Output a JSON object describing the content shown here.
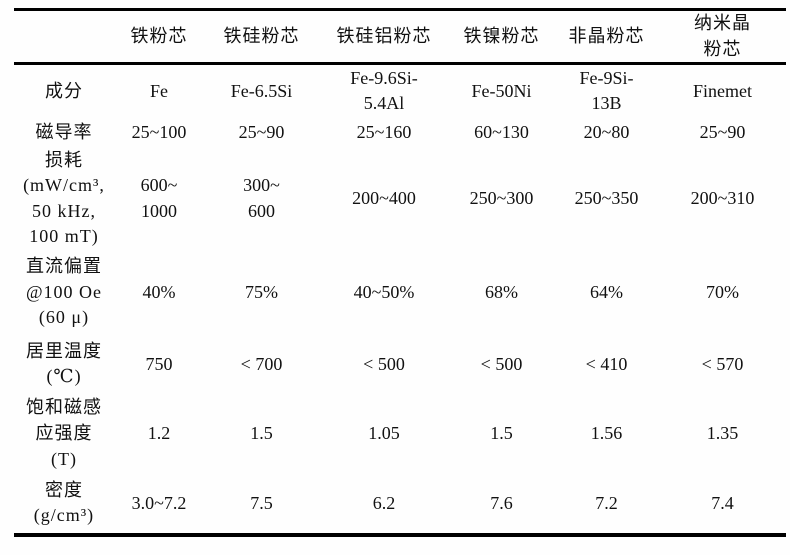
{
  "colors": {
    "background": "#fefefe",
    "text": "#111111",
    "rule": "#000000"
  },
  "table": {
    "columns": [
      "",
      "铁粉芯",
      "铁硅粉芯",
      "铁硅铝粉芯",
      "铁镍粉芯",
      "非晶粉芯",
      "纳米晶\n粉芯"
    ],
    "rows": [
      {
        "label": "成分",
        "values": [
          "Fe",
          "Fe-6.5Si",
          "Fe-9.6Si-\n5.4Al",
          "Fe-50Ni",
          "Fe-9Si-\n13B",
          "Finemet"
        ]
      },
      {
        "label": "磁导率",
        "values": [
          "25~100",
          "25~90",
          "25~160",
          "60~130",
          "20~80",
          "25~90"
        ]
      },
      {
        "label": "损耗\n(mW/cm³,\n50 kHz,\n100 mT)",
        "values": [
          "600~\n1000",
          "300~\n600",
          "200~400",
          "250~300",
          "250~350",
          "200~310"
        ]
      },
      {
        "label": "直流偏置\n@100 Oe\n(60 μ)",
        "values": [
          "40%",
          "75%",
          "40~50%",
          "68%",
          "64%",
          "70%"
        ]
      },
      {
        "label": "居里温度\n(℃)",
        "values": [
          "750",
          "< 700",
          "< 500",
          "< 500",
          "< 410",
          "< 570"
        ]
      },
      {
        "label": "饱和磁感\n应强度\n(T)",
        "values": [
          "1.2",
          "1.5",
          "1.05",
          "1.5",
          "1.56",
          "1.35"
        ]
      },
      {
        "label": "密度\n(g/cm³)",
        "values": [
          "3.0~7.2",
          "7.5",
          "6.2",
          "7.6",
          "7.2",
          "7.4"
        ]
      }
    ]
  }
}
